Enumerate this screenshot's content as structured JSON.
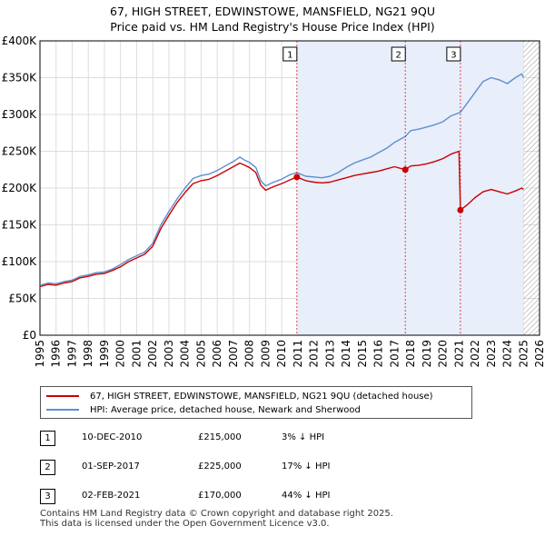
{
  "title_line1": "67, HIGH STREET, EDWINSTOWE, MANSFIELD, NG21 9QU",
  "title_line2": "Price paid vs. HM Land Registry's House Price Index (HPI)",
  "colors": {
    "property": "#cc0000",
    "hpi": "#5b8fd0",
    "shade": "#e8eefa",
    "grid": "#dddddd",
    "marker_line": "#cc0000"
  },
  "chart_data": {
    "type": "line",
    "title": "67, HIGH STREET, EDWINSTOWE, MANSFIELD, NG21 9QU\nPrice paid vs. HM Land Registry's House Price Index (HPI)",
    "xlabel": "",
    "ylabel": "",
    "xlim": [
      1995,
      2026
    ],
    "ylim": [
      0,
      400000
    ],
    "x_ticks": [
      1995,
      1996,
      1997,
      1998,
      1999,
      2000,
      2001,
      2002,
      2003,
      2004,
      2005,
      2006,
      2007,
      2008,
      2009,
      2010,
      2011,
      2012,
      2013,
      2014,
      2015,
      2016,
      2017,
      2018,
      2019,
      2020,
      2021,
      2022,
      2023,
      2024,
      2025,
      2026
    ],
    "y_ticks": [
      0,
      50000,
      100000,
      150000,
      200000,
      250000,
      300000,
      350000,
      400000
    ],
    "y_tick_labels": [
      "£0",
      "£50K",
      "£100K",
      "£150K",
      "£200K",
      "£250K",
      "£300K",
      "£350K",
      "£400K"
    ],
    "grid": true,
    "shaded_range": [
      2010.94,
      2025.0
    ],
    "hatched_from": 2025.0,
    "series": [
      {
        "name": "HPI: Average price, detached house, Newark and Sherwood",
        "color": "#5b8fd0",
        "points": [
          [
            1995.0,
            68000
          ],
          [
            1995.5,
            71000
          ],
          [
            1996.0,
            70000
          ],
          [
            1996.5,
            73000
          ],
          [
            1997.0,
            75000
          ],
          [
            1997.5,
            80000
          ],
          [
            1998.0,
            82000
          ],
          [
            1998.5,
            85000
          ],
          [
            1999.0,
            86000
          ],
          [
            1999.5,
            90000
          ],
          [
            2000.0,
            96000
          ],
          [
            2000.5,
            103000
          ],
          [
            2001.0,
            108000
          ],
          [
            2001.5,
            113000
          ],
          [
            2002.0,
            125000
          ],
          [
            2002.5,
            150000
          ],
          [
            2003.0,
            168000
          ],
          [
            2003.5,
            185000
          ],
          [
            2004.0,
            200000
          ],
          [
            2004.5,
            213000
          ],
          [
            2005.0,
            217000
          ],
          [
            2005.5,
            219000
          ],
          [
            2006.0,
            224000
          ],
          [
            2006.5,
            230000
          ],
          [
            2007.0,
            236000
          ],
          [
            2007.4,
            242000
          ],
          [
            2007.7,
            238000
          ],
          [
            2008.0,
            235000
          ],
          [
            2008.4,
            228000
          ],
          [
            2008.7,
            210000
          ],
          [
            2009.0,
            203000
          ],
          [
            2009.5,
            208000
          ],
          [
            2010.0,
            212000
          ],
          [
            2010.5,
            218000
          ],
          [
            2010.94,
            221000
          ],
          [
            2011.5,
            216000
          ],
          [
            2012.0,
            215000
          ],
          [
            2012.5,
            214000
          ],
          [
            2013.0,
            216000
          ],
          [
            2013.5,
            221000
          ],
          [
            2014.0,
            228000
          ],
          [
            2014.5,
            234000
          ],
          [
            2015.0,
            238000
          ],
          [
            2015.5,
            242000
          ],
          [
            2016.0,
            248000
          ],
          [
            2016.5,
            254000
          ],
          [
            2017.0,
            262000
          ],
          [
            2017.67,
            270000
          ],
          [
            2018.0,
            278000
          ],
          [
            2018.5,
            280000
          ],
          [
            2019.0,
            283000
          ],
          [
            2019.5,
            286000
          ],
          [
            2020.0,
            290000
          ],
          [
            2020.5,
            298000
          ],
          [
            2021.09,
            303000
          ],
          [
            2021.5,
            315000
          ],
          [
            2022.0,
            330000
          ],
          [
            2022.5,
            345000
          ],
          [
            2023.0,
            350000
          ],
          [
            2023.5,
            347000
          ],
          [
            2024.0,
            342000
          ],
          [
            2024.5,
            350000
          ],
          [
            2024.9,
            355000
          ],
          [
            2025.0,
            350000
          ]
        ]
      },
      {
        "name": "67, HIGH STREET, EDWINSTOWE, MANSFIELD, NG21 9QU (detached house)",
        "color": "#cc0000",
        "points": [
          [
            1995.0,
            66000
          ],
          [
            1995.5,
            69000
          ],
          [
            1996.0,
            68000
          ],
          [
            1996.5,
            71000
          ],
          [
            1997.0,
            73000
          ],
          [
            1997.5,
            78000
          ],
          [
            1998.0,
            80000
          ],
          [
            1998.5,
            83000
          ],
          [
            1999.0,
            84000
          ],
          [
            1999.5,
            88000
          ],
          [
            2000.0,
            93000
          ],
          [
            2000.5,
            100000
          ],
          [
            2001.0,
            105000
          ],
          [
            2001.5,
            110000
          ],
          [
            2002.0,
            121000
          ],
          [
            2002.5,
            145000
          ],
          [
            2003.0,
            163000
          ],
          [
            2003.5,
            180000
          ],
          [
            2004.0,
            194000
          ],
          [
            2004.5,
            206000
          ],
          [
            2005.0,
            210000
          ],
          [
            2005.5,
            212000
          ],
          [
            2006.0,
            217000
          ],
          [
            2006.5,
            223000
          ],
          [
            2007.0,
            229000
          ],
          [
            2007.4,
            234000
          ],
          [
            2007.7,
            231000
          ],
          [
            2008.0,
            228000
          ],
          [
            2008.4,
            221000
          ],
          [
            2008.7,
            204000
          ],
          [
            2009.0,
            197000
          ],
          [
            2009.5,
            202000
          ],
          [
            2010.0,
            206000
          ],
          [
            2010.5,
            211000
          ],
          [
            2010.94,
            215000
          ],
          [
            2011.5,
            210000
          ],
          [
            2012.0,
            208000
          ],
          [
            2012.5,
            207000
          ],
          [
            2013.0,
            208000
          ],
          [
            2013.5,
            211000
          ],
          [
            2014.0,
            214000
          ],
          [
            2014.5,
            217000
          ],
          [
            2015.0,
            219000
          ],
          [
            2015.5,
            221000
          ],
          [
            2016.0,
            223000
          ],
          [
            2016.5,
            226000
          ],
          [
            2017.0,
            229000
          ],
          [
            2017.67,
            225000
          ],
          [
            2018.0,
            230000
          ],
          [
            2018.5,
            231000
          ],
          [
            2019.0,
            233000
          ],
          [
            2019.5,
            236000
          ],
          [
            2020.0,
            240000
          ],
          [
            2020.5,
            246000
          ],
          [
            2021.0,
            250000
          ],
          [
            2021.09,
            170000
          ],
          [
            2021.5,
            177000
          ],
          [
            2022.0,
            187000
          ],
          [
            2022.5,
            195000
          ],
          [
            2023.0,
            198000
          ],
          [
            2023.5,
            195000
          ],
          [
            2024.0,
            192000
          ],
          [
            2024.5,
            196000
          ],
          [
            2024.9,
            200000
          ],
          [
            2025.0,
            198000
          ]
        ]
      }
    ],
    "sales": [
      {
        "id": "1",
        "x": 2010.94,
        "y": 215000
      },
      {
        "id": "2",
        "x": 2017.67,
        "y": 225000
      },
      {
        "id": "3",
        "x": 2021.09,
        "y": 170000
      }
    ]
  },
  "legend": {
    "property_label": "67, HIGH STREET, EDWINSTOWE, MANSFIELD, NG21 9QU (detached house)",
    "hpi_label": "HPI: Average price, detached house, Newark and Sherwood"
  },
  "sales_table": [
    {
      "num": "1",
      "date": "10-DEC-2010",
      "price": "£215,000",
      "hpi": "3% ↓ HPI"
    },
    {
      "num": "2",
      "date": "01-SEP-2017",
      "price": "£225,000",
      "hpi": "17% ↓ HPI"
    },
    {
      "num": "3",
      "date": "02-FEB-2021",
      "price": "£170,000",
      "hpi": "44% ↓ HPI"
    }
  ],
  "footer": {
    "line1": "Contains HM Land Registry data © Crown copyright and database right 2025.",
    "line2": "This data is licensed under the Open Government Licence v3.0."
  }
}
